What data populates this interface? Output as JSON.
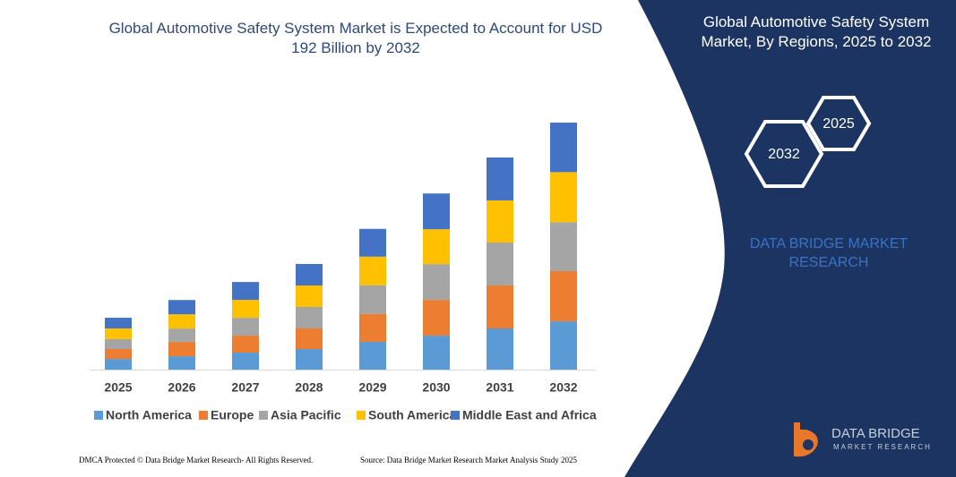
{
  "chart_data": {
    "type": "bar",
    "stacked": true,
    "title": "Global Automotive Safety System Market is Expected to Account for USD 192 Billion by 2032",
    "categories": [
      "2025",
      "2026",
      "2027",
      "2028",
      "2029",
      "2030",
      "2031",
      "2032"
    ],
    "series": [
      {
        "name": "North America",
        "color": "#5b9bd5",
        "values": [
          8.3,
          10.4,
          13.2,
          16,
          21.6,
          26.4,
          32,
          37.5
        ]
      },
      {
        "name": "Europe",
        "color": "#ed7d31",
        "values": [
          7.7,
          11.1,
          13.2,
          16,
          21.6,
          27.8,
          33.4,
          39
        ]
      },
      {
        "name": "Asia Pacific",
        "color": "#a5a5a5",
        "values": [
          7.7,
          10.4,
          13.9,
          16.7,
          22.3,
          27.8,
          33.4,
          38
        ]
      },
      {
        "name": "South America",
        "color": "#ffc000",
        "values": [
          8.3,
          11.1,
          13.9,
          16.7,
          22.3,
          27.1,
          32.7,
          39
        ]
      },
      {
        "name": "Middle East and Africa",
        "color": "#4472c4",
        "values": [
          8.3,
          11.1,
          13.9,
          16.7,
          21.6,
          27.8,
          33.4,
          38.5
        ]
      }
    ]
  },
  "panel": {
    "title": "Global Automotive Safety System Market, By Regions, 2025 to 2032",
    "hexagons": [
      "2025",
      "2032"
    ],
    "brand": "DATA BRIDGE MARKET RESEARCH"
  },
  "logo": {
    "name": "DATA BRIDGE",
    "tagline": "MARKET RESEARCH"
  },
  "footer": {
    "left": "DMCA Protected © Data Bridge Market Research- All Rights Reserved.",
    "right": "Source: Data Bridge Market Research Market Analysis Study 2025"
  }
}
